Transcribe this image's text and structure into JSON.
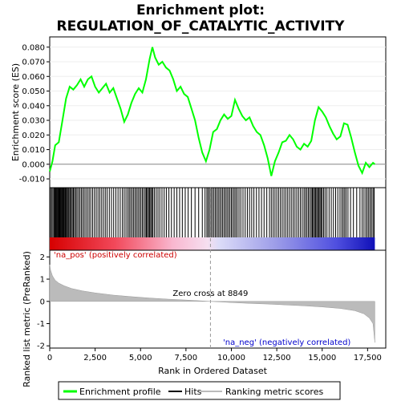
{
  "chart_data": {
    "type": "line",
    "title_line1": "Enrichment plot:",
    "title_line2": "REGULATION_OF_CATALYTIC_ACTIVITY",
    "es_panel": {
      "ylabel": "Enrichment score (ES)",
      "ylim": [
        -0.016,
        0.087
      ],
      "yticks": [
        "-0.010",
        "0.000",
        "0.010",
        "0.020",
        "0.030",
        "0.040",
        "0.050",
        "0.060",
        "0.070",
        "0.080"
      ],
      "ytick_values": [
        -0.01,
        0.0,
        0.01,
        0.02,
        0.03,
        0.04,
        0.05,
        0.06,
        0.07,
        0.08
      ],
      "line_color": "#00ff00",
      "points": [
        [
          0,
          -0.005
        ],
        [
          150,
          0.002
        ],
        [
          300,
          0.013
        ],
        [
          500,
          0.015
        ],
        [
          700,
          0.03
        ],
        [
          900,
          0.045
        ],
        [
          1100,
          0.053
        ],
        [
          1300,
          0.051
        ],
        [
          1500,
          0.054
        ],
        [
          1700,
          0.058
        ],
        [
          1900,
          0.053
        ],
        [
          2100,
          0.058
        ],
        [
          2300,
          0.06
        ],
        [
          2500,
          0.053
        ],
        [
          2700,
          0.049
        ],
        [
          2900,
          0.052
        ],
        [
          3100,
          0.055
        ],
        [
          3300,
          0.049
        ],
        [
          3500,
          0.052
        ],
        [
          3700,
          0.045
        ],
        [
          3900,
          0.038
        ],
        [
          4100,
          0.029
        ],
        [
          4300,
          0.034
        ],
        [
          4500,
          0.042
        ],
        [
          4700,
          0.048
        ],
        [
          4900,
          0.052
        ],
        [
          5100,
          0.049
        ],
        [
          5300,
          0.058
        ],
        [
          5500,
          0.072
        ],
        [
          5650,
          0.08
        ],
        [
          5800,
          0.073
        ],
        [
          6000,
          0.068
        ],
        [
          6200,
          0.07
        ],
        [
          6400,
          0.066
        ],
        [
          6600,
          0.064
        ],
        [
          6800,
          0.058
        ],
        [
          7000,
          0.05
        ],
        [
          7200,
          0.053
        ],
        [
          7400,
          0.048
        ],
        [
          7600,
          0.046
        ],
        [
          7800,
          0.038
        ],
        [
          8000,
          0.03
        ],
        [
          8200,
          0.018
        ],
        [
          8400,
          0.008
        ],
        [
          8600,
          0.002
        ],
        [
          8800,
          0.01
        ],
        [
          9000,
          0.022
        ],
        [
          9200,
          0.024
        ],
        [
          9400,
          0.03
        ],
        [
          9600,
          0.034
        ],
        [
          9800,
          0.031
        ],
        [
          10000,
          0.033
        ],
        [
          10200,
          0.044
        ],
        [
          10400,
          0.038
        ],
        [
          10600,
          0.033
        ],
        [
          10800,
          0.03
        ],
        [
          11000,
          0.032
        ],
        [
          11200,
          0.026
        ],
        [
          11400,
          0.022
        ],
        [
          11600,
          0.02
        ],
        [
          11800,
          0.013
        ],
        [
          12000,
          0.004
        ],
        [
          12200,
          -0.008
        ],
        [
          12400,
          0.002
        ],
        [
          12600,
          0.008
        ],
        [
          12800,
          0.015
        ],
        [
          13000,
          0.016
        ],
        [
          13200,
          0.02
        ],
        [
          13400,
          0.017
        ],
        [
          13600,
          0.012
        ],
        [
          13800,
          0.01
        ],
        [
          14000,
          0.014
        ],
        [
          14200,
          0.012
        ],
        [
          14400,
          0.016
        ],
        [
          14600,
          0.03
        ],
        [
          14800,
          0.039
        ],
        [
          15000,
          0.036
        ],
        [
          15200,
          0.032
        ],
        [
          15400,
          0.026
        ],
        [
          15600,
          0.021
        ],
        [
          15800,
          0.017
        ],
        [
          16000,
          0.019
        ],
        [
          16200,
          0.028
        ],
        [
          16400,
          0.027
        ],
        [
          16600,
          0.018
        ],
        [
          16800,
          0.008
        ],
        [
          17000,
          -0.001
        ],
        [
          17200,
          -0.006
        ],
        [
          17400,
          0.001
        ],
        [
          17600,
          -0.002
        ],
        [
          17800,
          0.001
        ],
        [
          17900,
          0.0
        ]
      ]
    },
    "hits": [
      50,
      120,
      180,
      240,
      290,
      330,
      370,
      410,
      450,
      490,
      530,
      570,
      610,
      650,
      690,
      730,
      770,
      810,
      860,
      910,
      960,
      1010,
      1060,
      1120,
      1180,
      1240,
      1300,
      1360,
      1430,
      1500,
      1580,
      1660,
      1740,
      1820,
      1900,
      1990,
      2080,
      2170,
      2260,
      2360,
      2460,
      2560,
      2660,
      2760,
      2860,
      2960,
      3060,
      3160,
      3280,
      3400,
      3520,
      3640,
      3760,
      3880,
      4000,
      4100,
      4200,
      4300,
      4380,
      4460,
      4540,
      4620,
      4700,
      4780,
      4860,
      4940,
      5020,
      5100,
      5180,
      5260,
      5320,
      5380,
      5440,
      5500,
      5560,
      5620,
      5680,
      5760,
      5860,
      5960,
      6060,
      6180,
      6300,
      6420,
      6560,
      6700,
      6850,
      7000,
      7150,
      7300,
      7460,
      7620,
      7800,
      8000,
      8200,
      8400,
      8550,
      8650,
      8720,
      8800,
      8880,
      8960,
      9040,
      9120,
      9200,
      9280,
      9360,
      9440,
      9520,
      9600,
      9680,
      9760,
      9840,
      9920,
      10000,
      10080,
      10160,
      10240,
      10320,
      10420,
      10520,
      10640,
      10760,
      10880,
      11000,
      11120,
      11240,
      11380,
      11520,
      11660,
      11800,
      11950,
      12100,
      12200,
      12300,
      12400,
      12500,
      12600,
      12700,
      12800,
      12900,
      13000,
      13100,
      13200,
      13300,
      13400,
      13500,
      13600,
      13700,
      13800,
      13900,
      14000,
      14080,
      14160,
      14240,
      14320,
      14400,
      14460,
      14520,
      14580,
      14640,
      14700,
      14760,
      14820,
      14880,
      14940,
      15000,
      15080,
      15160,
      15260,
      15380,
      15500,
      15620,
      15740,
      15860,
      15980,
      16080,
      16160,
      16240,
      16320,
      16420,
      16560,
      16720,
      16900,
      17080,
      17200,
      17300,
      17400,
      17480,
      17560,
      17640,
      17720,
      17800,
      17860
    ],
    "metric_panel": {
      "ylabel": "Ranked list metric (PreRanked)",
      "ylim": [
        -2.1,
        2.3
      ],
      "yticks": [
        "-2",
        "-1",
        "0",
        "1",
        "2"
      ],
      "ytick_values": [
        -2,
        -1,
        0,
        1,
        2
      ],
      "zero_cross_label": "Zero cross at 8849",
      "zero_cross": 8849,
      "pos_label": "'na_pos' (positively correlated)",
      "neg_label": "'na_neg' (negatively correlated)",
      "curve": [
        [
          0,
          1.65
        ],
        [
          50,
          1.4
        ],
        [
          150,
          1.15
        ],
        [
          300,
          0.95
        ],
        [
          500,
          0.82
        ],
        [
          800,
          0.7
        ],
        [
          1200,
          0.58
        ],
        [
          1800,
          0.47
        ],
        [
          2500,
          0.38
        ],
        [
          3500,
          0.28
        ],
        [
          4500,
          0.21
        ],
        [
          5500,
          0.15
        ],
        [
          6500,
          0.1
        ],
        [
          7500,
          0.06
        ],
        [
          8849,
          0.0
        ],
        [
          10000,
          -0.05
        ],
        [
          11000,
          -0.09
        ],
        [
          12000,
          -0.12
        ],
        [
          13000,
          -0.16
        ],
        [
          14000,
          -0.2
        ],
        [
          15000,
          -0.25
        ],
        [
          16000,
          -0.32
        ],
        [
          16800,
          -0.42
        ],
        [
          17300,
          -0.56
        ],
        [
          17600,
          -0.75
        ],
        [
          17800,
          -1.0
        ],
        [
          17900,
          -1.85
        ]
      ]
    },
    "xaxis": {
      "xlabel": "Rank in Ordered Dataset",
      "xlim": [
        0,
        18500
      ],
      "xticks": [
        "0",
        "2,500",
        "5,000",
        "7,500",
        "10,000",
        "12,500",
        "15,000",
        "17,500"
      ],
      "xtick_values": [
        0,
        2500,
        5000,
        7500,
        10000,
        12500,
        15000,
        17500
      ],
      "n_genes": 17900
    },
    "legend": {
      "placement": "bottom",
      "items": [
        {
          "label": "Enrichment profile",
          "color": "#00ff00"
        },
        {
          "label": "Hits",
          "color": "#000000"
        },
        {
          "label": "Ranking metric scores",
          "color": "#bbbbbb"
        }
      ]
    },
    "colors": {
      "pos_label": "#cc0000",
      "neg_label": "#0000cc",
      "zero_line": "#888888"
    }
  }
}
